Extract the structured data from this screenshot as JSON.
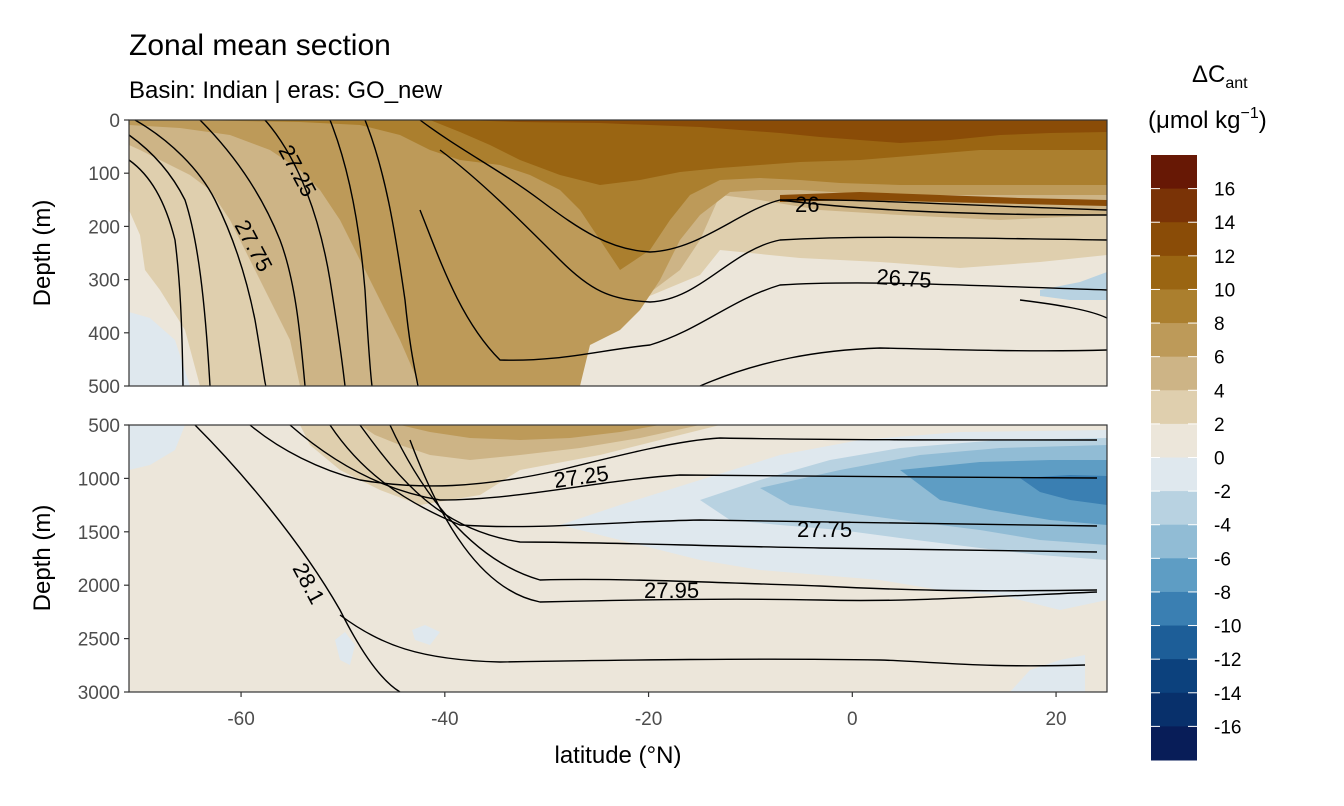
{
  "chart_data": {
    "type": "heatmap",
    "title": "Zonal mean section",
    "subtitle": "Basin: Indian | eras: GO_new",
    "xlabel": "latitude (°N)",
    "xlim": [
      -71,
      25
    ],
    "x_ticks": [
      -60,
      -40,
      -20,
      0,
      20
    ],
    "panels": [
      {
        "name": "upper",
        "ylabel": "Depth (m)",
        "ylim": [
          0,
          500
        ],
        "y_ticks": [
          0,
          100,
          200,
          300,
          400,
          500
        ],
        "contour_labels": [
          "27.25",
          "27.75",
          "26",
          "26.75"
        ]
      },
      {
        "name": "lower",
        "ylabel": "Depth (m)",
        "ylim": [
          500,
          3000
        ],
        "y_ticks": [
          500,
          1000,
          1500,
          2000,
          2500,
          3000
        ],
        "contour_labels": [
          "27.25",
          "27.75",
          "27.95",
          "28.1"
        ]
      }
    ],
    "legend": {
      "title_main": "ΔC",
      "title_sub": "ant",
      "unit_prefix": "(μmol kg",
      "unit_exp": "−1",
      "unit_suffix": ")",
      "position": "right",
      "ticks": [
        16,
        14,
        12,
        10,
        8,
        6,
        4,
        2,
        0,
        -2,
        -4,
        -6,
        -8,
        -10,
        -12,
        -14,
        -16
      ],
      "colors": [
        "#671805",
        "#7a3306",
        "#8a4c07",
        "#9a6512",
        "#ab7f2e",
        "#bd9a59",
        "#cdb486",
        "#dfcfae",
        "#ece6da",
        "#dfe8ee",
        "#b8d2e1",
        "#91bcd5",
        "#5e9dc4",
        "#3a7fb2",
        "#1d5e98",
        "#0c417d",
        "#08306b",
        "#081d58"
      ]
    }
  }
}
